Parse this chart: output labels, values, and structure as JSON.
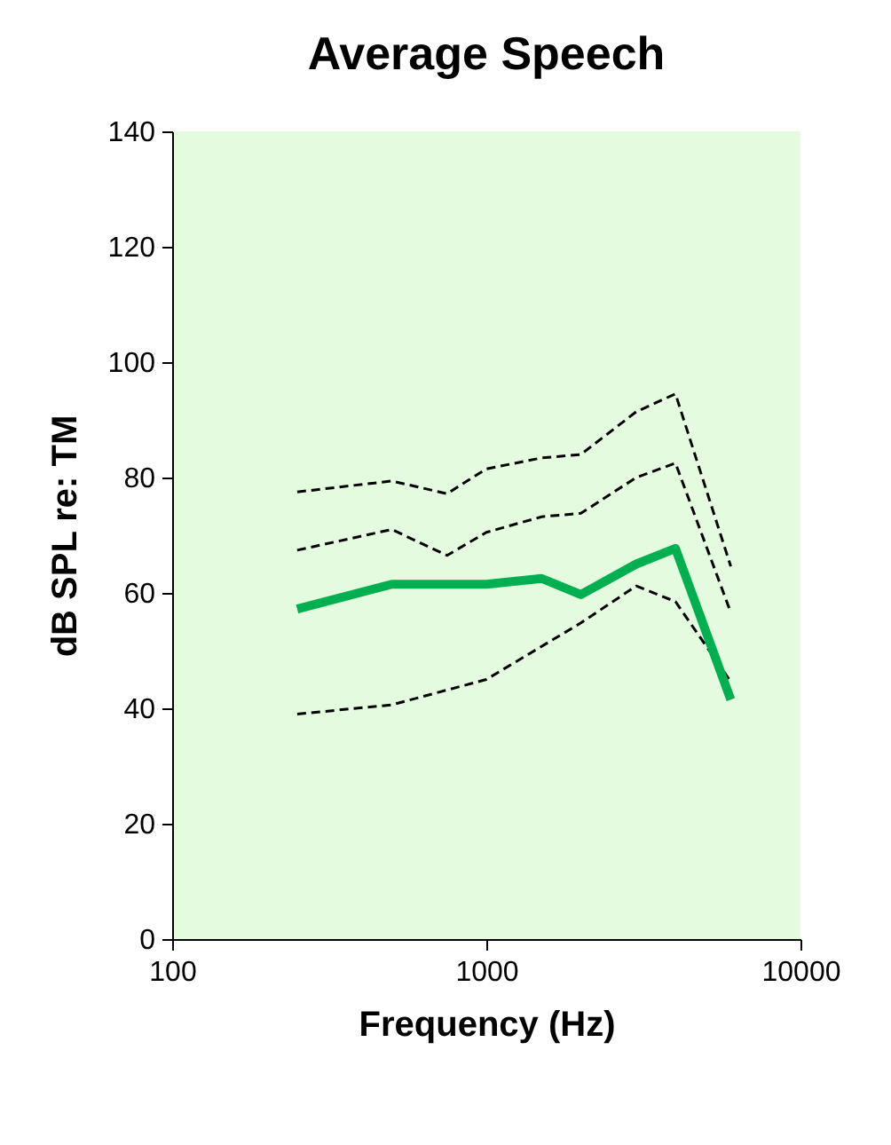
{
  "chart_data": {
    "type": "line",
    "title": "Average Speech",
    "xlabel": "Frequency (Hz)",
    "ylabel": "dB SPL re: TM",
    "log": "x",
    "xlim": [
      100,
      10000
    ],
    "xticks": [
      100,
      1000,
      10000
    ],
    "ylim": [
      0,
      140
    ],
    "yticks": [
      0,
      20,
      40,
      60,
      80,
      100,
      120,
      140
    ],
    "grid": false,
    "marker": "none",
    "series": [
      {
        "color": "#000000",
        "line_style": "dashed",
        "x": [
          250,
          500,
          750,
          1000,
          1500,
          2000,
          3000,
          4000,
          6000
        ],
        "values": [
          77.5,
          79.4,
          77.2,
          81.5,
          83.4,
          84,
          91.4,
          94.5,
          64.6
        ]
      },
      {
        "color": "#000000",
        "line_style": "dashed",
        "x": [
          250,
          500,
          750,
          1000,
          1500,
          2000,
          3000,
          4000,
          6000
        ],
        "values": [
          67.4,
          71,
          66.5,
          70.5,
          73.2,
          73.8,
          80,
          82.5,
          56.6
        ]
      },
      {
        "color": "#000000",
        "line_style": "dashed",
        "x": [
          250,
          500,
          1000,
          2000,
          3000,
          4000,
          6000
        ],
        "values": [
          39,
          40.6,
          45,
          54.8,
          61.2,
          58.5,
          44.6
        ]
      },
      {
        "color": "#00b050",
        "line_style": "solid",
        "x": [
          250,
          500,
          1000,
          1500,
          2000,
          3000,
          4000,
          6000
        ],
        "values": [
          57.2,
          61.5,
          61.5,
          62.5,
          59.7,
          65,
          67.7,
          41.5
        ]
      }
    ]
  }
}
